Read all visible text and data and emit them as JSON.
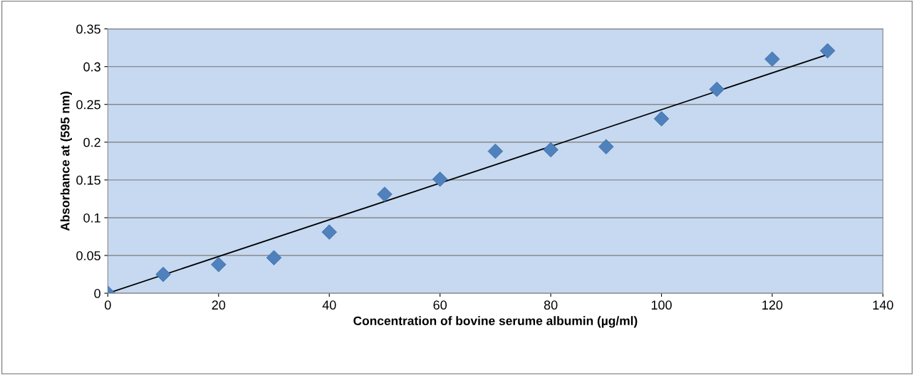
{
  "chart_data": {
    "type": "scatter",
    "xlabel": "Concentration of bovine serume albumin (µg/ml)",
    "ylabel": "Absorbance at (595 nm)",
    "x": [
      0,
      10,
      20,
      30,
      40,
      50,
      60,
      70,
      80,
      90,
      100,
      110,
      120,
      130
    ],
    "series": [
      {
        "color": "#4f81bd",
        "marker": "diamond",
        "values": [
          0,
          0.025,
          0.038,
          0.047,
          0.081,
          0.131,
          0.151,
          0.188,
          0.19,
          0.194,
          0.231,
          0.27,
          0.31,
          0.321
        ]
      },
      {
        "type": "line",
        "color": "#000000",
        "x": [
          0,
          130
        ],
        "values": [
          0,
          0.316
        ]
      }
    ],
    "xlim": [
      0,
      140
    ],
    "xticks": [
      0,
      20,
      40,
      60,
      80,
      100,
      120,
      140
    ],
    "ylim": [
      0,
      0.35
    ],
    "yticks": [
      0,
      0.05,
      0.1,
      0.15,
      0.2,
      0.25,
      0.3,
      0.35
    ],
    "grid": "y"
  }
}
